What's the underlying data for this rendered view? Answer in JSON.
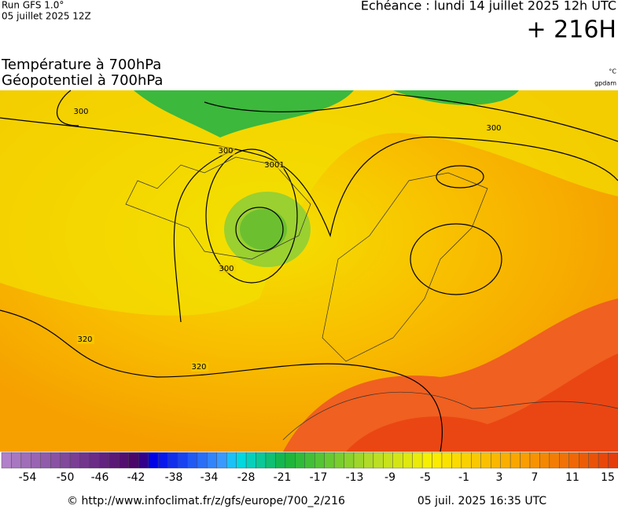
{
  "header": {
    "run": "Run GFS 1.0°",
    "run_date": "05 juillet 2025 12Z",
    "valid": "Echéance : lundi 14 juillet 2025 12h UTC",
    "lead": "+ 216H"
  },
  "titles": {
    "line1": "Température à 700hPa",
    "line2": "Géopotentiel à 700hPa",
    "unit_temp": "°C",
    "unit_geo": "gpdam"
  },
  "contour_labels": [
    "300",
    "300",
    "300",
    "3001",
    "300",
    "320",
    "320"
  ],
  "colorbar": {
    "ticks": [
      -54,
      -50,
      -46,
      -42,
      -38,
      -34,
      -28,
      -21,
      -17,
      -13,
      -9,
      -5,
      -1,
      3,
      7,
      11,
      15
    ]
  },
  "footer": {
    "source": "© http://www.infoclimat.fr/z/gfs/europe/700_2/216",
    "generated": "05 juil. 2025 16:35 UTC"
  }
}
